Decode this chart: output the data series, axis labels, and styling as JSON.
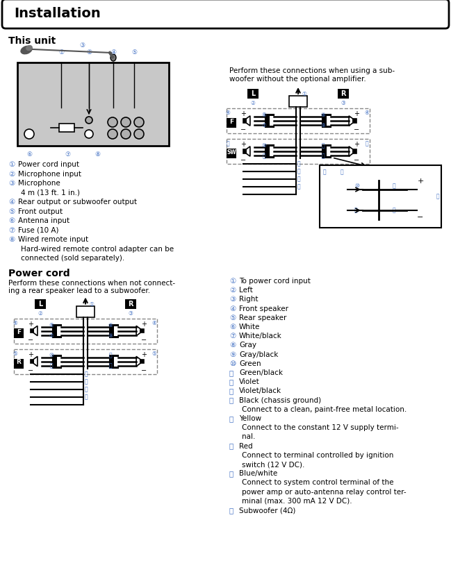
{
  "title": "Installation",
  "bg_color": "#ffffff",
  "text_color_black": "#000000",
  "text_color_blue": "#4472c4",
  "header_fontsize": 14,
  "section_fontsize": 10,
  "body_fontsize": 7.5,
  "small_fontsize": 6.5,
  "tiny_fontsize": 5.5,
  "this_unit_label": "This unit",
  "power_cord_label": "Power cord",
  "subwoofer_text_line1": "Perform these connections when using a sub-",
  "subwoofer_text_line2": "woofer without the optional amplifier.",
  "power_cord_text_line1": "Perform these connections when not connect-",
  "power_cord_text_line2": "ing a rear speaker lead to a subwoofer.",
  "unit_items": [
    [
      "①",
      "Power cord input",
      false
    ],
    [
      "②",
      "Microphone input",
      false
    ],
    [
      "③",
      "Microphone",
      false
    ],
    [
      "",
      "4 m (13 ft. 1 in.)",
      false
    ],
    [
      "④",
      "Rear output or subwoofer output",
      false
    ],
    [
      "⑤",
      "Front output",
      false
    ],
    [
      "⑥",
      "Antenna input",
      false
    ],
    [
      "⑦",
      "Fuse (10 A)",
      false
    ],
    [
      "⑧",
      "Wired remote input",
      false
    ],
    [
      "",
      "Hard-wired remote control adapter can be",
      false
    ],
    [
      "",
      "connected (sold separately).",
      false
    ]
  ],
  "right_items": [
    [
      "①",
      "To power cord input"
    ],
    [
      "②",
      "Left"
    ],
    [
      "③",
      "Right"
    ],
    [
      "④",
      "Front speaker"
    ],
    [
      "⑤",
      "Rear speaker"
    ],
    [
      "⑥",
      "White"
    ],
    [
      "⑦",
      "White/black"
    ],
    [
      "⑧",
      "Gray"
    ],
    [
      "⑨",
      "Gray/black"
    ],
    [
      "⑩",
      "Green"
    ],
    [
      "⑪",
      "Green/black"
    ],
    [
      "⑫",
      "Violet"
    ],
    [
      "⑬",
      "Violet/black"
    ],
    [
      "⑭",
      "Black (chassis ground)"
    ],
    [
      "",
      "Connect to a clean, paint-free metal location."
    ],
    [
      "⑮",
      "Yellow"
    ],
    [
      "",
      "Connect to the constant 12 V supply termi-"
    ],
    [
      "",
      "nal."
    ],
    [
      "⑯",
      "Red"
    ],
    [
      "",
      "Connect to terminal controlled by ignition"
    ],
    [
      "",
      "switch (12 V DC)."
    ],
    [
      "⑰",
      "Blue/white"
    ],
    [
      "",
      "Connect to system control terminal of the"
    ],
    [
      "",
      "power amp or auto-antenna relay control ter-"
    ],
    [
      "",
      "minal (max. 300 mA 12 V DC)."
    ],
    [
      "⑱",
      "Subwoofer (4Ω)"
    ]
  ]
}
